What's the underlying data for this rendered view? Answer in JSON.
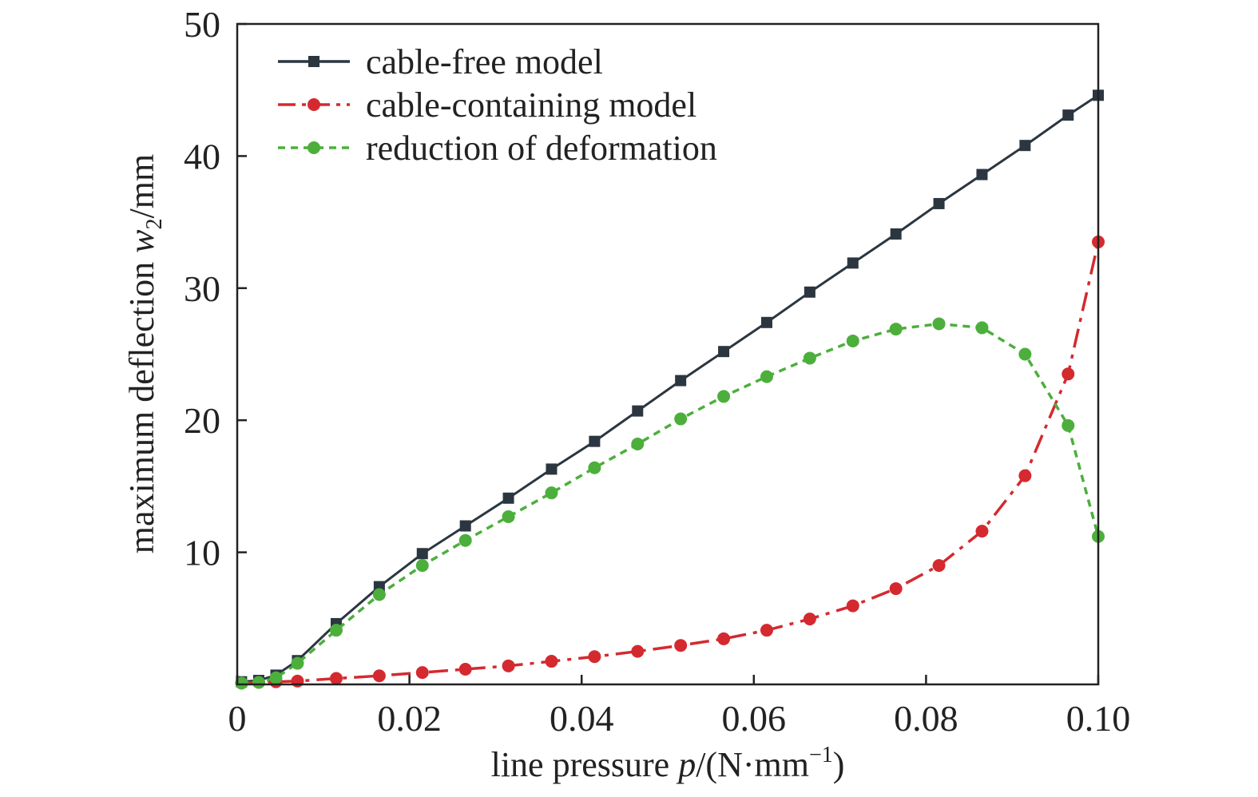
{
  "chart_data": {
    "type": "line",
    "xlabel_prefix": "line pressure ",
    "xlabel_var": "p",
    "xlabel_unit": "/(N·mm",
    "xlabel_exp": "−1",
    "xlabel_close": ")",
    "ylabel_prefix": "maximum deflection ",
    "ylabel_var": "w",
    "ylabel_sub": "2",
    "ylabel_unit": "/mm",
    "xlim": [
      0,
      0.1
    ],
    "ylim": [
      0,
      50
    ],
    "xticks": [
      0,
      0.02,
      0.04,
      0.06,
      0.08,
      0.1
    ],
    "xtick_labels": [
      "0",
      "0.02",
      "0.04",
      "0.06",
      "0.08",
      "0.10"
    ],
    "yticks": [
      10,
      20,
      30,
      40,
      50
    ],
    "ytick_labels": [
      "10",
      "20",
      "30",
      "40",
      "50"
    ],
    "grid": false,
    "legend_position": "top-left",
    "series": [
      {
        "name": "cable-free model",
        "color": "#2b3640",
        "marker": "square",
        "dash": "solid",
        "x": [
          0.0005,
          0.0025,
          0.0045,
          0.007,
          0.0115,
          0.0165,
          0.0215,
          0.0265,
          0.0315,
          0.0365,
          0.0415,
          0.0465,
          0.0515,
          0.0565,
          0.0615,
          0.0665,
          0.0715,
          0.0765,
          0.0815,
          0.0865,
          0.0915,
          0.0965,
          0.1
        ],
        "y": [
          0.2,
          0.3,
          0.7,
          1.8,
          4.6,
          7.4,
          9.9,
          12.0,
          14.1,
          16.3,
          18.4,
          20.7,
          23.0,
          25.2,
          27.4,
          29.7,
          31.9,
          34.1,
          36.4,
          38.6,
          40.8,
          43.1,
          44.6
        ]
      },
      {
        "name": "cable-containing model",
        "color": "#d42a2f",
        "marker": "circle",
        "dash": "dashdot",
        "x": [
          0.0005,
          0.0025,
          0.0045,
          0.007,
          0.0115,
          0.0165,
          0.0215,
          0.0265,
          0.0315,
          0.0365,
          0.0415,
          0.0465,
          0.0515,
          0.0565,
          0.0615,
          0.0665,
          0.0715,
          0.0765,
          0.0815,
          0.0865,
          0.0915,
          0.0965,
          0.1
        ],
        "y": [
          0.1,
          0.15,
          0.2,
          0.25,
          0.45,
          0.65,
          0.9,
          1.15,
          1.4,
          1.75,
          2.1,
          2.5,
          2.95,
          3.45,
          4.1,
          4.95,
          5.95,
          7.25,
          9.0,
          11.6,
          15.8,
          23.5,
          33.5
        ]
      },
      {
        "name": "reduction of deformation",
        "color": "#4caf3c",
        "marker": "circle",
        "dash": "dashed",
        "x": [
          0.0005,
          0.0025,
          0.0045,
          0.007,
          0.0115,
          0.0165,
          0.0215,
          0.0265,
          0.0315,
          0.0365,
          0.0415,
          0.0465,
          0.0515,
          0.0565,
          0.0615,
          0.0665,
          0.0715,
          0.0765,
          0.0815,
          0.0865,
          0.0915,
          0.0965,
          0.1
        ],
        "y": [
          0.1,
          0.15,
          0.5,
          1.6,
          4.1,
          6.8,
          9.0,
          10.9,
          12.7,
          14.5,
          16.4,
          18.2,
          20.1,
          21.8,
          23.3,
          24.7,
          26.0,
          26.9,
          27.3,
          27.0,
          25.0,
          19.6,
          11.2
        ]
      }
    ]
  }
}
